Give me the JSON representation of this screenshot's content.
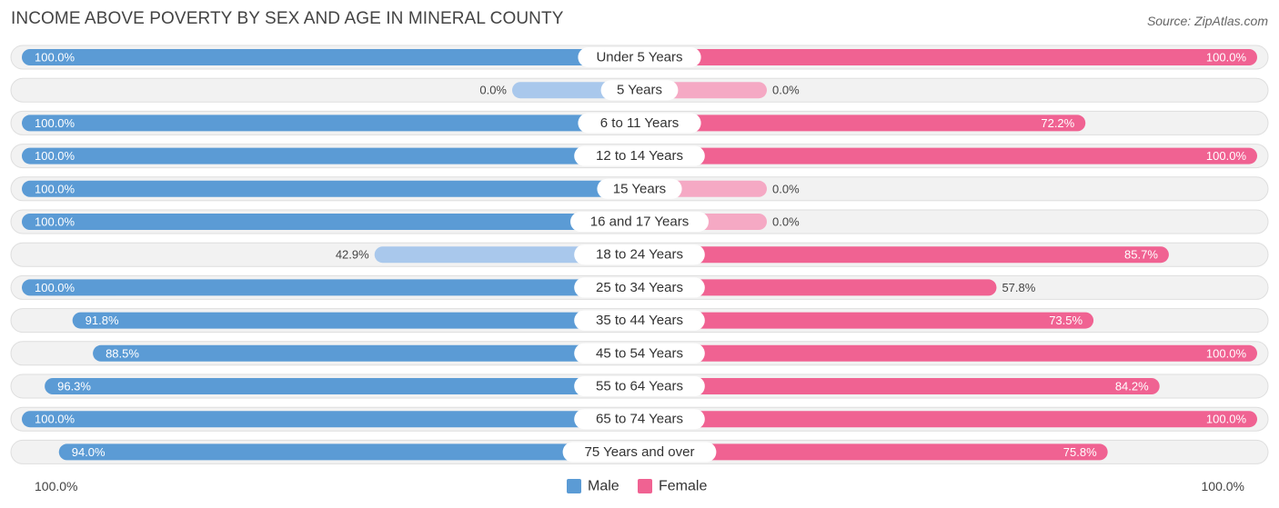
{
  "header": {
    "title": "INCOME ABOVE POVERTY BY SEX AND AGE IN MINERAL COUNTY",
    "source": "Source: ZipAtlas.com"
  },
  "chart_data": {
    "type": "bar",
    "orientation": "horizontal-diverging",
    "title": "INCOME ABOVE POVERTY BY SEX AND AGE IN MINERAL COUNTY",
    "categories": [
      "Under 5 Years",
      "5 Years",
      "6 to 11 Years",
      "12 to 14 Years",
      "15 Years",
      "16 and 17 Years",
      "18 to 24 Years",
      "25 to 34 Years",
      "35 to 44 Years",
      "45 to 54 Years",
      "55 to 64 Years",
      "65 to 74 Years",
      "75 Years and over"
    ],
    "series": [
      {
        "name": "Male",
        "color": "#5b9bd5",
        "light_color": "#a9c8ec",
        "values": [
          100.0,
          0.0,
          100.0,
          100.0,
          100.0,
          100.0,
          42.9,
          100.0,
          91.8,
          88.5,
          96.3,
          100.0,
          94.0
        ],
        "labels": [
          "100.0%",
          "0.0%",
          "100.0%",
          "100.0%",
          "100.0%",
          "100.0%",
          "42.9%",
          "100.0%",
          "91.8%",
          "88.5%",
          "96.3%",
          "100.0%",
          "94.0%"
        ]
      },
      {
        "name": "Female",
        "color": "#f06292",
        "light_color": "#f5a9c4",
        "values": [
          100.0,
          0.0,
          72.2,
          100.0,
          0.0,
          0.0,
          85.7,
          57.8,
          73.5,
          100.0,
          84.2,
          100.0,
          75.8
        ],
        "labels": [
          "100.0%",
          "0.0%",
          "72.2%",
          "100.0%",
          "0.0%",
          "0.0%",
          "85.7%",
          "57.8%",
          "73.5%",
          "100.0%",
          "84.2%",
          "100.0%",
          "75.8%"
        ]
      }
    ],
    "xlim": [
      0,
      100
    ],
    "axis_labels": {
      "left": "100.0%",
      "right": "100.0%"
    },
    "legend": {
      "position": "bottom-center",
      "items": [
        "Male",
        "Female"
      ]
    }
  }
}
